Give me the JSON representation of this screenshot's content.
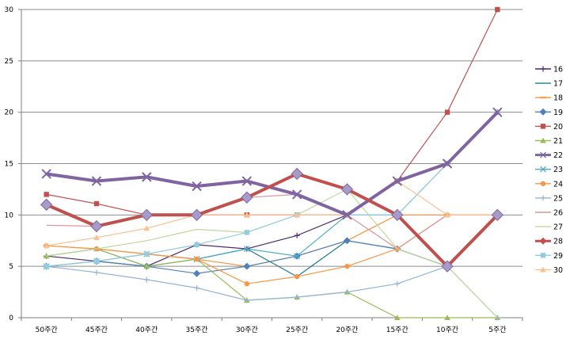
{
  "chart_data": {
    "type": "line",
    "title": "",
    "xlabel": "",
    "ylabel": "",
    "categories": [
      "50주간",
      "45주간",
      "40주간",
      "35주간",
      "30주간",
      "25주간",
      "20주간",
      "15주간",
      "10주간",
      "5주간"
    ],
    "ylim": [
      0,
      30
    ],
    "yticks": [
      0,
      5,
      10,
      15,
      20,
      25,
      30
    ],
    "grid": true,
    "legend": "right",
    "series": [
      {
        "name": "16",
        "color": "#4b2a6e",
        "marker": "plus",
        "width": 1.2,
        "values": [
          6,
          5.5,
          5,
          7.1,
          6.7,
          8,
          10,
          13.3,
          15,
          20
        ]
      },
      {
        "name": "17",
        "color": "#1f7a8c",
        "marker": "none",
        "width": 1.2,
        "values": [
          6,
          6.7,
          5,
          5.7,
          6.7,
          4,
          7.5,
          6.7,
          5,
          10
        ]
      },
      {
        "name": "18",
        "color": "#f79646",
        "marker": "dash",
        "width": 1.2,
        "values": [
          7,
          6.7,
          6.2,
          5.7,
          5,
          6,
          7.5,
          10,
          10,
          10
        ]
      },
      {
        "name": "19",
        "color": "#4f81bd",
        "marker": "diamond",
        "width": 1.2,
        "values": [
          5,
          5.5,
          5,
          4.3,
          5,
          6,
          7.5,
          6.7,
          5,
          10
        ]
      },
      {
        "name": "20",
        "color": "#c0504d",
        "marker": "square",
        "width": 1.2,
        "values": [
          12,
          11.1,
          10,
          10,
          10,
          10,
          10,
          13.3,
          20,
          30
        ]
      },
      {
        "name": "21",
        "color": "#9bbb59",
        "marker": "triangle",
        "width": 1.2,
        "values": [
          6,
          6.7,
          5,
          5.7,
          1.7,
          2,
          2.5,
          0,
          0,
          0
        ]
      },
      {
        "name": "22",
        "color": "#8064a2",
        "marker": "x",
        "width": 4,
        "values": [
          14,
          13.3,
          13.7,
          12.8,
          13.3,
          12,
          10,
          13.3,
          15,
          20
        ]
      },
      {
        "name": "23",
        "color": "#4bacc6",
        "marker": "x",
        "width": 1.2,
        "values": [
          5,
          5.5,
          6.2,
          5.7,
          6.7,
          6,
          10,
          10,
          15,
          20
        ]
      },
      {
        "name": "24",
        "color": "#f79646",
        "marker": "circle",
        "width": 1.2,
        "values": [
          7,
          6.7,
          6.2,
          5.7,
          3.3,
          4,
          5,
          6.7,
          10,
          10
        ]
      },
      {
        "name": "25",
        "color": "#95b3d7",
        "marker": "plus",
        "width": 1.2,
        "values": [
          5,
          4.4,
          3.7,
          2.9,
          1.7,
          2,
          2.5,
          3.3,
          5,
          0
        ]
      },
      {
        "name": "26",
        "color": "#d99694",
        "marker": "none",
        "width": 1.2,
        "values": [
          9,
          8.9,
          10,
          10,
          11.7,
          12,
          10,
          6.7,
          10,
          10
        ]
      },
      {
        "name": "27",
        "color": "#c3d69b",
        "marker": "none",
        "width": 1.2,
        "values": [
          6,
          6.7,
          7.5,
          8.6,
          8.3,
          10,
          12.5,
          6.7,
          5,
          0
        ]
      },
      {
        "name": "28",
        "color": "#c0504d",
        "marker": "diamond",
        "width": 4,
        "values": [
          11,
          8.9,
          10,
          10,
          11.7,
          14,
          12.5,
          10,
          5,
          10
        ]
      },
      {
        "name": "29",
        "color": "#93cddd",
        "marker": "square",
        "width": 1.2,
        "values": [
          5,
          5.5,
          6.2,
          7.1,
          8.3,
          10,
          10,
          10,
          15,
          20
        ]
      },
      {
        "name": "30",
        "color": "#fac090",
        "marker": "triangle",
        "width": 1.2,
        "values": [
          7,
          7.8,
          8.7,
          10,
          10,
          10,
          10,
          13.3,
          10,
          10
        ]
      }
    ]
  }
}
